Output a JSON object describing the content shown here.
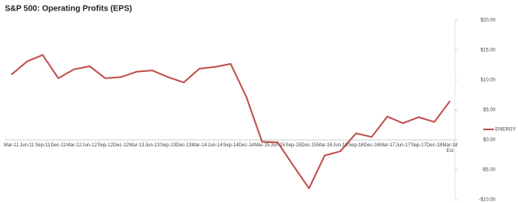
{
  "chart_data": {
    "type": "line",
    "title": "S&P 500: Operating Profits (EPS)",
    "categories": [
      "Mar-11",
      "Jun-11",
      "Sep-11",
      "Dec-11",
      "Mar-12",
      "Jun-12",
      "Sep-12",
      "Dec-12",
      "Mar-13",
      "Jun-13",
      "Sep-13",
      "Dec-13",
      "Mar-14",
      "Jun-14",
      "Sep-14",
      "Dec-14",
      "Mar-15",
      "Jun-15",
      "Sep-15",
      "Dec-15",
      "Mar-16",
      "Jun-16",
      "Sep-16",
      "Dec-16",
      "Mar-17",
      "Jun-17",
      "Sep-17",
      "Dec-18",
      "Mar-18 Est"
    ],
    "series": [
      {
        "name": "ENERGY",
        "color": "#c0504d",
        "values": [
          10.9,
          13.1,
          14.2,
          10.3,
          11.8,
          12.3,
          10.3,
          10.5,
          11.4,
          11.6,
          10.5,
          9.6,
          11.9,
          12.2,
          12.7,
          7.2,
          -0.3,
          -0.4,
          -4.3,
          -8.1,
          -2.6,
          -1.9,
          1.1,
          0.5,
          3.9,
          2.8,
          3.8,
          3.0,
          6.5
        ]
      }
    ],
    "ylim": [
      -10,
      20
    ],
    "yticks": [
      {
        "value": 20,
        "label": "$20.00"
      },
      {
        "value": 15,
        "label": "$15.00"
      },
      {
        "value": 10,
        "label": "$10.00"
      },
      {
        "value": 5,
        "label": "$5.00"
      },
      {
        "value": 0,
        "label": "$0.00"
      },
      {
        "value": -5,
        "label": "-$5.00"
      },
      {
        "value": -10,
        "label": "-$10.00"
      }
    ],
    "legend": "right"
  }
}
